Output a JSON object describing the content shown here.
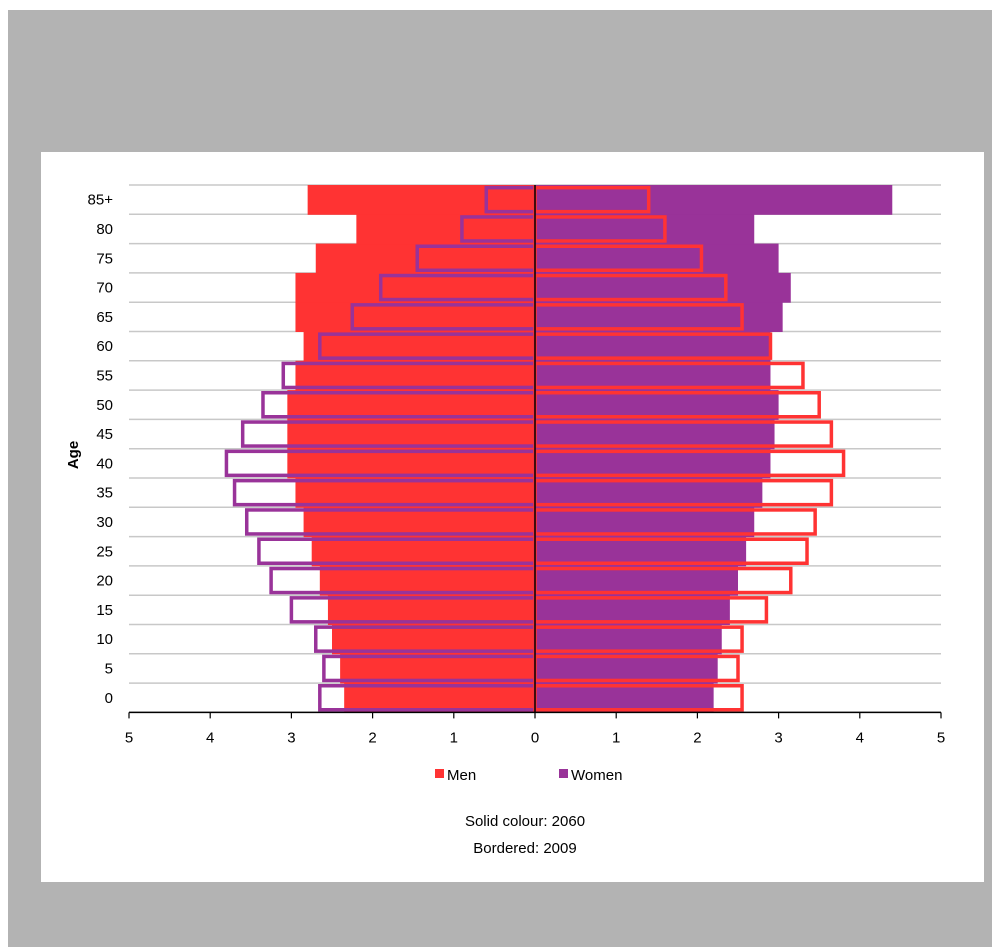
{
  "chart_data": {
    "type": "bar",
    "orientation": "horizontal-population-pyramid",
    "ylabel": "Age",
    "xlim": [
      -5,
      5
    ],
    "x_ticks": [
      "5",
      "4",
      "3",
      "2",
      "1",
      "0",
      "1",
      "2",
      "3",
      "4",
      "5"
    ],
    "categories": [
      "0",
      "5",
      "10",
      "15",
      "20",
      "25",
      "30",
      "35",
      "40",
      "45",
      "50",
      "55",
      "60",
      "65",
      "70",
      "75",
      "80",
      "85+"
    ],
    "y_tick_labels": [
      "0",
      "5",
      "10",
      "15",
      "20",
      "25",
      "30",
      "35",
      "40",
      "45",
      "50",
      "55",
      "60",
      "65",
      "70",
      "75",
      "80",
      "85+"
    ],
    "series": [
      {
        "name": "Men",
        "year": "2060",
        "style": "solid",
        "color": "#ff3333",
        "values": [
          2.35,
          2.4,
          2.5,
          2.55,
          2.65,
          2.75,
          2.85,
          2.95,
          3.05,
          3.05,
          3.05,
          2.95,
          2.85,
          2.95,
          2.95,
          2.7,
          2.2,
          2.8
        ]
      },
      {
        "name": "Women",
        "year": "2060",
        "style": "solid",
        "color": "#993399",
        "values": [
          2.2,
          2.25,
          2.3,
          2.4,
          2.5,
          2.6,
          2.7,
          2.8,
          2.9,
          2.95,
          3.0,
          2.9,
          2.9,
          3.05,
          3.15,
          3.0,
          2.7,
          4.4
        ]
      },
      {
        "name": "Men",
        "year": "2009",
        "style": "bordered",
        "color": "#993399",
        "values": [
          2.65,
          2.6,
          2.7,
          3.0,
          3.25,
          3.4,
          3.55,
          3.7,
          3.8,
          3.6,
          3.35,
          3.1,
          2.65,
          2.25,
          1.9,
          1.45,
          0.9,
          0.6
        ]
      },
      {
        "name": "Women",
        "year": "2009",
        "style": "bordered",
        "color": "#ff3333",
        "values": [
          2.55,
          2.5,
          2.55,
          2.85,
          3.15,
          3.35,
          3.45,
          3.65,
          3.8,
          3.65,
          3.5,
          3.3,
          2.9,
          2.55,
          2.35,
          2.05,
          1.6,
          1.4
        ]
      }
    ],
    "legend": {
      "position": "bottom",
      "items": [
        {
          "label": "Men",
          "color": "#ff3333"
        },
        {
          "label": "Women",
          "color": "#993399"
        }
      ]
    },
    "notes": [
      "Solid colour: 2060",
      "Bordered: 2009"
    ]
  }
}
